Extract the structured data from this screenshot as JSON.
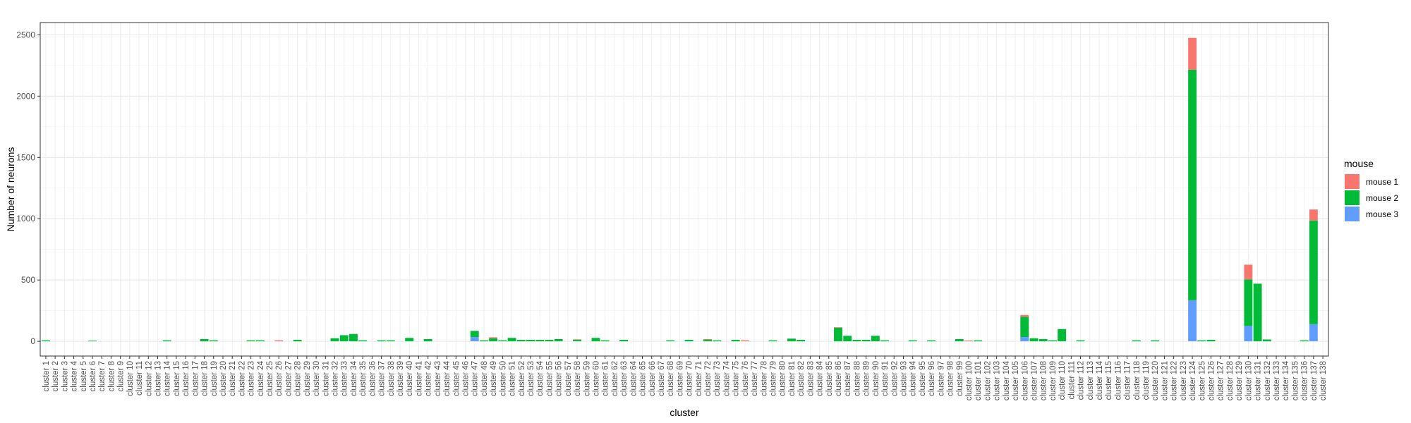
{
  "chart_data": {
    "type": "bar",
    "stacked": true,
    "xlabel": "cluster",
    "ylabel": "Number of neurons",
    "ylim": [
      -120,
      2600
    ],
    "yticks": [
      0,
      500,
      1000,
      1500,
      2000,
      2500
    ],
    "grid": true,
    "legend": {
      "title": "mouse",
      "position": "right"
    },
    "categories": [
      "cluster 1",
      "cluster 2",
      "cluster 3",
      "cluster 4",
      "cluster 5",
      "cluster 6",
      "cluster 7",
      "cluster 8",
      "cluster 9",
      "cluster 10",
      "cluster 11",
      "cluster 12",
      "cluster 13",
      "cluster 14",
      "cluster 15",
      "cluster 16",
      "cluster 17",
      "cluster 18",
      "cluster 19",
      "cluster 20",
      "cluster 21",
      "cluster 22",
      "cluster 23",
      "cluster 24",
      "cluster 25",
      "cluster 26",
      "cluster 27",
      "cluster 28",
      "cluster 29",
      "cluster 30",
      "cluster 31",
      "cluster 32",
      "cluster 33",
      "cluster 34",
      "cluster 35",
      "cluster 36",
      "cluster 37",
      "cluster 38",
      "cluster 39",
      "cluster 40",
      "cluster 41",
      "cluster 42",
      "cluster 43",
      "cluster 44",
      "cluster 45",
      "cluster 46",
      "cluster 47",
      "cluster 48",
      "cluster 49",
      "cluster 50",
      "cluster 51",
      "cluster 52",
      "cluster 53",
      "cluster 54",
      "cluster 55",
      "cluster 56",
      "cluster 57",
      "cluster 58",
      "cluster 59",
      "cluster 60",
      "cluster 61",
      "cluster 62",
      "cluster 63",
      "cluster 64",
      "cluster 65",
      "cluster 66",
      "cluster 67",
      "cluster 68",
      "cluster 69",
      "cluster 70",
      "cluster 71",
      "cluster 72",
      "cluster 73",
      "cluster 74",
      "cluster 75",
      "cluster 76",
      "cluster 77",
      "cluster 78",
      "cluster 79",
      "cluster 80",
      "cluster 81",
      "cluster 82",
      "cluster 83",
      "cluster 84",
      "cluster 85",
      "cluster 86",
      "cluster 87",
      "cluster 88",
      "cluster 89",
      "cluster 90",
      "cluster 91",
      "cluster 92",
      "cluster 93",
      "cluster 94",
      "cluster 95",
      "cluster 96",
      "cluster 97",
      "cluster 98",
      "cluster 99",
      "cluster 100",
      "cluster 101",
      "cluster 102",
      "cluster 103",
      "cluster 104",
      "cluster 105",
      "cluster 106",
      "cluster 107",
      "cluster 108",
      "cluster 109",
      "cluster 110",
      "cluster 111",
      "cluster 112",
      "cluster 113",
      "cluster 114",
      "cluster 115",
      "cluster 116",
      "cluster 117",
      "cluster 118",
      "cluster 119",
      "cluster 120",
      "cluster 121",
      "cluster 122",
      "cluster 123",
      "cluster 124",
      "cluster 125",
      "cluster 126",
      "cluster 127",
      "cluster 128",
      "cluster 129",
      "cluster 130",
      "cluster 131",
      "cluster 132",
      "cluster 133",
      "cluster 134",
      "cluster 135",
      "cluster 136",
      "cluster 137",
      "cluster 138"
    ],
    "series": [
      {
        "name": "mouse 1",
        "color": "#F8766D",
        "values": [
          0,
          0,
          0,
          0,
          0,
          0,
          0,
          0,
          0,
          0,
          0,
          0,
          0,
          0,
          0,
          0,
          0,
          0,
          0,
          0,
          0,
          0,
          0,
          0,
          0,
          8,
          0,
          0,
          0,
          0,
          0,
          0,
          0,
          0,
          0,
          0,
          0,
          0,
          0,
          0,
          0,
          0,
          0,
          0,
          0,
          0,
          0,
          0,
          8,
          0,
          0,
          0,
          0,
          0,
          0,
          0,
          0,
          4,
          0,
          0,
          0,
          0,
          0,
          0,
          0,
          0,
          0,
          0,
          0,
          0,
          0,
          6,
          0,
          0,
          0,
          8,
          0,
          0,
          0,
          0,
          0,
          0,
          0,
          0,
          0,
          5,
          0,
          0,
          0,
          0,
          0,
          0,
          0,
          0,
          0,
          0,
          0,
          0,
          0,
          6,
          0,
          0,
          0,
          0,
          0,
          15,
          0,
          0,
          0,
          0,
          0,
          0,
          0,
          0,
          0,
          0,
          0,
          0,
          0,
          0,
          0,
          0,
          0,
          260,
          0,
          0,
          0,
          0,
          0,
          120,
          0,
          0,
          0,
          0,
          0,
          0,
          90,
          0
        ]
      },
      {
        "name": "mouse 2",
        "color": "#00BA38",
        "values": [
          8,
          0,
          0,
          0,
          0,
          5,
          0,
          0,
          0,
          0,
          0,
          0,
          0,
          8,
          0,
          0,
          0,
          18,
          8,
          0,
          0,
          0,
          8,
          8,
          0,
          0,
          0,
          12,
          0,
          0,
          0,
          25,
          50,
          60,
          8,
          0,
          8,
          8,
          0,
          28,
          0,
          18,
          0,
          0,
          0,
          0,
          50,
          8,
          25,
          8,
          28,
          12,
          12,
          12,
          12,
          18,
          0,
          12,
          0,
          28,
          8,
          0,
          12,
          0,
          0,
          0,
          0,
          8,
          0,
          12,
          0,
          12,
          8,
          0,
          12,
          0,
          0,
          0,
          8,
          0,
          22,
          12,
          0,
          0,
          0,
          110,
          45,
          12,
          12,
          45,
          8,
          0,
          0,
          8,
          0,
          8,
          0,
          0,
          18,
          0,
          8,
          0,
          0,
          0,
          0,
          165,
          25,
          18,
          8,
          100,
          0,
          8,
          0,
          0,
          0,
          0,
          0,
          8,
          0,
          8,
          0,
          0,
          0,
          1880,
          8,
          12,
          0,
          0,
          0,
          380,
          470,
          15,
          0,
          0,
          0,
          8,
          845,
          0
        ]
      },
      {
        "name": "mouse 3",
        "color": "#619CFF",
        "values": [
          0,
          0,
          0,
          0,
          0,
          0,
          0,
          0,
          0,
          0,
          0,
          0,
          0,
          0,
          0,
          0,
          0,
          0,
          0,
          0,
          0,
          0,
          0,
          0,
          0,
          0,
          0,
          0,
          0,
          0,
          0,
          0,
          0,
          0,
          0,
          0,
          0,
          0,
          0,
          0,
          0,
          0,
          0,
          0,
          0,
          0,
          35,
          0,
          0,
          0,
          0,
          0,
          0,
          0,
          0,
          0,
          0,
          0,
          0,
          0,
          0,
          0,
          0,
          0,
          0,
          0,
          0,
          0,
          0,
          0,
          0,
          0,
          0,
          0,
          0,
          0,
          0,
          0,
          0,
          0,
          0,
          0,
          0,
          0,
          0,
          0,
          0,
          0,
          0,
          0,
          0,
          0,
          0,
          0,
          0,
          0,
          0,
          0,
          0,
          0,
          0,
          0,
          0,
          0,
          0,
          35,
          0,
          0,
          0,
          0,
          0,
          0,
          0,
          0,
          0,
          0,
          0,
          0,
          0,
          0,
          0,
          0,
          0,
          335,
          0,
          0,
          0,
          0,
          0,
          125,
          0,
          0,
          0,
          0,
          0,
          0,
          140,
          0
        ]
      }
    ]
  }
}
